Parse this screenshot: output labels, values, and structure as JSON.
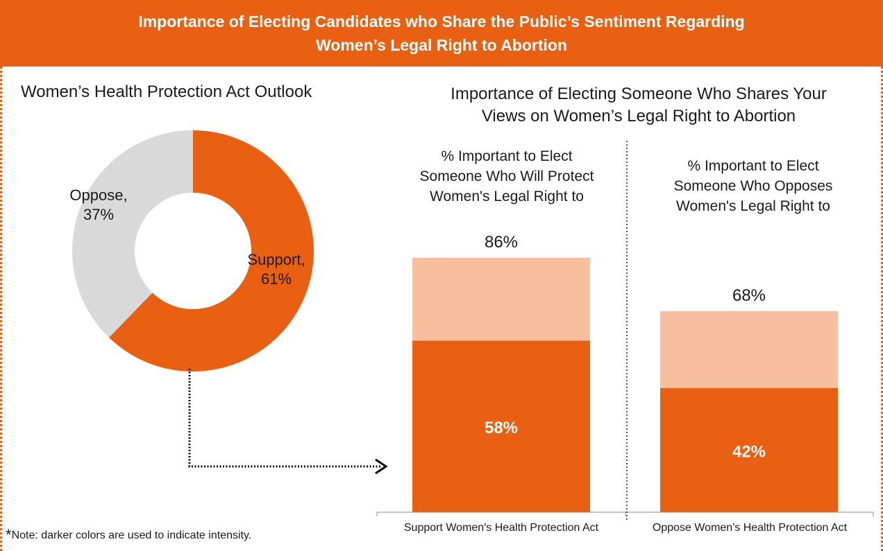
{
  "header": {
    "title_line1": "Importance of Electing Candidates who Share the Public’s Sentiment Regarding",
    "title_line2": "Women’s Legal Right to Abortion"
  },
  "colors": {
    "banner": "#ea6012",
    "intense": "#ea6012",
    "light": "#f8bf9e",
    "neutral": "#d9d9d9",
    "connector": "#000000"
  },
  "footer": {
    "note_marker": "*",
    "note": "Note: darker colors are used to indicate intensity."
  },
  "chart_data": [
    {
      "type": "pie",
      "style": "donut",
      "title": "Women’s Health Protection Act Outlook",
      "slices": [
        {
          "name": "Support",
          "value": 61,
          "label_line1": "Support,",
          "label_line2": "61%",
          "color": "#ea6012"
        },
        {
          "name": "Oppose",
          "value": 37,
          "label_line1": "Oppose,",
          "label_line2": "37%",
          "color": "#d9d9d9"
        }
      ]
    },
    {
      "type": "bar",
      "stacked": true,
      "title_line1": "Importance of Electing Someone Who Shares Your",
      "title_line2": "Views on Women’s Legal Right to Abortion",
      "categories": [
        "Support Women's Health Protection Act",
        "Oppose Women's Health Protection Act"
      ],
      "panel_titles": [
        [
          "% Important to Elect",
          "Someone Who Will Protect",
          "Women's Legal Right to"
        ],
        [
          "% Important to Elect",
          "Someone Who Opposes",
          "Women's Legal Right to"
        ]
      ],
      "totals": [
        86,
        68
      ],
      "total_labels": [
        "86%",
        "68%"
      ],
      "series": [
        {
          "values": [
            58,
            42
          ],
          "labels": [
            "58%",
            "42%"
          ],
          "color": "#ea6012"
        },
        {
          "values": [
            28,
            26
          ],
          "color": "#f8bf9e"
        }
      ],
      "ylim": [
        0,
        100
      ]
    }
  ]
}
